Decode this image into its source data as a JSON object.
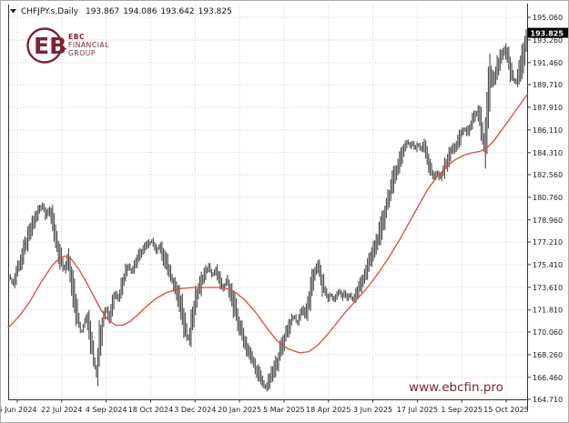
{
  "window": {
    "symbol_title": "CHFJPY.s,Daily",
    "ohlc": {
      "open": "193.867",
      "high": "194.086",
      "low": "193.642",
      "close": "193.825"
    }
  },
  "logo": {
    "monogram": "EB",
    "plus": "+",
    "lines": [
      "EBC",
      "FINANCIAL",
      "GROUP"
    ],
    "color": "#7a2331"
  },
  "watermark": {
    "text": "www.ebcfin.pro",
    "color": "#7a2735"
  },
  "chart_data": {
    "type": "candlestick",
    "symbol": "CHFJPY.s",
    "timeframe": "Daily",
    "title": "CHFJPY.s,Daily  193.867 194.086 193.642 193.825",
    "grid": true,
    "legend_position": "none",
    "ylim": [
      164.71,
      195.06
    ],
    "y_axis": {
      "ticks": [
        "195.060",
        "193.260",
        "191.460",
        "189.710",
        "187.910",
        "186.110",
        "184.310",
        "182.560",
        "180.760",
        "178.960",
        "177.210",
        "175.410",
        "173.610",
        "171.810",
        "170.060",
        "168.260",
        "166.460",
        "164.710"
      ],
      "current_price": "193.825"
    },
    "x_axis": {
      "ticks": [
        "6 Jun 2024",
        "22 Jul 2024",
        "4 Sep 2024",
        "18 Oct 2024",
        "3 Dec 2024",
        "20 Jan 2025",
        "5 Mar 2025",
        "18 Apr 2025",
        "3 Jun 2025",
        "17 Jul 2025",
        "1 Sep 2025",
        "15 Oct 2025"
      ]
    },
    "bar_count": 356,
    "price_path": [
      [
        10,
        174.4
      ],
      [
        13,
        173.8
      ],
      [
        16,
        174.6
      ],
      [
        20,
        175.4
      ],
      [
        24,
        176.3
      ],
      [
        28,
        177.2
      ],
      [
        33,
        178.3
      ],
      [
        38,
        179.2
      ],
      [
        43,
        179.9
      ],
      [
        46,
        180.2
      ],
      [
        49,
        179.2
      ],
      [
        52,
        179.8
      ],
      [
        55,
        179.0
      ],
      [
        58,
        178.2
      ],
      [
        61,
        177.0
      ],
      [
        64,
        176.2
      ],
      [
        67,
        175.4
      ],
      [
        70,
        175.0
      ],
      [
        73,
        175.9
      ],
      [
        76,
        174.6
      ],
      [
        79,
        173.1
      ],
      [
        82,
        172.0
      ],
      [
        85,
        170.9
      ],
      [
        88,
        169.9
      ],
      [
        91,
        170.7
      ],
      [
        94,
        171.2
      ],
      [
        97,
        169.9
      ],
      [
        100,
        168.9
      ],
      [
        103,
        167.2
      ],
      [
        105,
        166.9
      ],
      [
        107,
        168.9
      ],
      [
        110,
        170.3
      ],
      [
        113,
        171.5
      ],
      [
        116,
        171.9
      ],
      [
        119,
        171.1
      ],
      [
        122,
        172.3
      ],
      [
        125,
        173.3
      ],
      [
        128,
        172.6
      ],
      [
        131,
        173.3
      ],
      [
        134,
        174.1
      ],
      [
        137,
        174.9
      ],
      [
        140,
        175.4
      ],
      [
        143,
        174.8
      ],
      [
        146,
        175.3
      ],
      [
        150,
        175.9
      ],
      [
        154,
        176.4
      ],
      [
        158,
        176.8
      ],
      [
        162,
        177.1
      ],
      [
        166,
        177.3
      ],
      [
        170,
        176.5
      ],
      [
        174,
        176.9
      ],
      [
        178,
        176.1
      ],
      [
        182,
        175.4
      ],
      [
        186,
        174.5
      ],
      [
        190,
        173.8
      ],
      [
        194,
        172.9
      ],
      [
        198,
        171.8
      ],
      [
        202,
        170.5
      ],
      [
        205,
        169.4
      ],
      [
        208,
        170.4
      ],
      [
        211,
        171.6
      ],
      [
        214,
        172.7
      ],
      [
        217,
        173.4
      ],
      [
        220,
        174.1
      ],
      [
        224,
        174.8
      ],
      [
        228,
        175.3
      ],
      [
        232,
        174.5
      ],
      [
        236,
        175.0
      ],
      [
        240,
        174.2
      ],
      [
        244,
        173.4
      ],
      [
        248,
        174.3
      ],
      [
        252,
        173.1
      ],
      [
        256,
        172.0
      ],
      [
        260,
        170.9
      ],
      [
        264,
        170.0
      ],
      [
        268,
        169.2
      ],
      [
        272,
        168.4
      ],
      [
        276,
        167.7
      ],
      [
        280,
        167.1
      ],
      [
        284,
        166.5
      ],
      [
        288,
        165.9
      ],
      [
        291,
        165.6
      ],
      [
        294,
        166.2
      ],
      [
        298,
        166.8
      ],
      [
        302,
        167.5
      ],
      [
        306,
        168.4
      ],
      [
        310,
        169.3
      ],
      [
        314,
        170.2
      ],
      [
        318,
        170.9
      ],
      [
        322,
        171.4
      ],
      [
        325,
        170.7
      ],
      [
        328,
        171.3
      ],
      [
        331,
        172.0
      ],
      [
        334,
        171.4
      ],
      [
        337,
        172.2
      ],
      [
        340,
        173.2
      ],
      [
        344,
        174.6
      ],
      [
        347,
        175.5
      ],
      [
        350,
        174.6
      ],
      [
        353,
        173.8
      ],
      [
        356,
        173.2
      ],
      [
        359,
        172.7
      ],
      [
        362,
        173.1
      ],
      [
        365,
        172.6
      ],
      [
        368,
        172.9
      ],
      [
        371,
        173.4
      ],
      [
        374,
        172.8
      ],
      [
        377,
        173.2
      ],
      [
        380,
        172.7
      ],
      [
        383,
        173.1
      ],
      [
        386,
        172.6
      ],
      [
        389,
        173.0
      ],
      [
        392,
        173.4
      ],
      [
        395,
        173.9
      ],
      [
        398,
        174.4
      ],
      [
        401,
        175.0
      ],
      [
        404,
        175.5
      ],
      [
        407,
        176.1
      ],
      [
        410,
        176.8
      ],
      [
        413,
        177.4
      ],
      [
        416,
        178.0
      ],
      [
        419,
        178.8
      ],
      [
        422,
        179.7
      ],
      [
        425,
        180.6
      ],
      [
        428,
        181.4
      ],
      [
        431,
        182.2
      ],
      [
        434,
        182.9
      ],
      [
        437,
        183.6
      ],
      [
        440,
        184.2
      ],
      [
        443,
        184.8
      ],
      [
        446,
        185.2
      ],
      [
        449,
        184.8
      ],
      [
        452,
        185.1
      ],
      [
        455,
        184.6
      ],
      [
        458,
        185.1
      ],
      [
        461,
        184.5
      ],
      [
        464,
        185.0
      ],
      [
        467,
        184.2
      ],
      [
        470,
        183.3
      ],
      [
        473,
        182.7
      ],
      [
        476,
        182.3
      ],
      [
        479,
        182.8
      ],
      [
        482,
        182.2
      ],
      [
        485,
        182.8
      ],
      [
        488,
        183.3
      ],
      [
        491,
        183.9
      ],
      [
        494,
        184.4
      ],
      [
        497,
        184.7
      ],
      [
        500,
        184.9
      ],
      [
        503,
        185.4
      ],
      [
        506,
        185.9
      ],
      [
        509,
        186.2
      ],
      [
        512,
        185.9
      ],
      [
        515,
        186.4
      ],
      [
        518,
        186.9
      ],
      [
        521,
        187.3
      ],
      [
        524,
        187.5
      ],
      [
        527,
        186.8
      ],
      [
        529,
        185.3
      ],
      [
        531,
        184.5
      ],
      [
        533,
        186.3
      ],
      [
        535,
        188.6
      ],
      [
        537,
        190.6
      ],
      [
        539,
        190.3
      ],
      [
        541,
        190.0
      ],
      [
        543,
        190.7
      ],
      [
        545,
        191.1
      ],
      [
        547,
        191.5
      ],
      [
        549,
        191.9
      ],
      [
        551,
        192.2
      ],
      [
        553,
        192.5
      ],
      [
        555,
        192.2
      ],
      [
        557,
        191.6
      ],
      [
        559,
        191.0
      ],
      [
        561,
        190.5
      ],
      [
        563,
        190.1
      ],
      [
        565,
        189.8
      ],
      [
        567,
        190.2
      ],
      [
        569,
        190.8
      ],
      [
        571,
        191.4
      ],
      [
        573,
        192.0
      ],
      [
        575,
        192.8
      ],
      [
        577,
        193.6
      ],
      [
        578,
        193.83
      ]
    ],
    "ma_path": [
      [
        8,
        170.4
      ],
      [
        20,
        171.3
      ],
      [
        32,
        172.5
      ],
      [
        44,
        174.0
      ],
      [
        56,
        175.3
      ],
      [
        64,
        175.9
      ],
      [
        70,
        176.1
      ],
      [
        78,
        175.8
      ],
      [
        86,
        175.0
      ],
      [
        94,
        174.0
      ],
      [
        102,
        172.9
      ],
      [
        110,
        171.8
      ],
      [
        118,
        171.0
      ],
      [
        126,
        170.6
      ],
      [
        134,
        170.6
      ],
      [
        142,
        170.9
      ],
      [
        150,
        171.4
      ],
      [
        160,
        172.1
      ],
      [
        170,
        172.7
      ],
      [
        182,
        173.2
      ],
      [
        196,
        173.5
      ],
      [
        212,
        173.6
      ],
      [
        228,
        173.6
      ],
      [
        244,
        173.6
      ],
      [
        256,
        173.3
      ],
      [
        268,
        172.6
      ],
      [
        280,
        171.6
      ],
      [
        292,
        170.4
      ],
      [
        304,
        169.3
      ],
      [
        316,
        168.7
      ],
      [
        328,
        168.4
      ],
      [
        338,
        168.5
      ],
      [
        348,
        169.0
      ],
      [
        358,
        169.8
      ],
      [
        368,
        170.7
      ],
      [
        378,
        171.6
      ],
      [
        388,
        172.4
      ],
      [
        398,
        173.2
      ],
      [
        408,
        174.1
      ],
      [
        418,
        175.1
      ],
      [
        428,
        176.2
      ],
      [
        438,
        177.4
      ],
      [
        448,
        178.7
      ],
      [
        458,
        180.0
      ],
      [
        468,
        181.3
      ],
      [
        478,
        182.3
      ],
      [
        488,
        183.1
      ],
      [
        498,
        183.7
      ],
      [
        508,
        184.1
      ],
      [
        518,
        184.3
      ],
      [
        526,
        184.4
      ],
      [
        534,
        184.7
      ],
      [
        542,
        185.3
      ],
      [
        550,
        186.1
      ],
      [
        558,
        186.9
      ],
      [
        566,
        187.7
      ],
      [
        572,
        188.3
      ],
      [
        578,
        188.9
      ]
    ],
    "colors": {
      "bar": "#4f4f4f",
      "ma": "#d84a3f",
      "grid": "#d5cfc9",
      "axis_line": "#333333",
      "tag_bg": "#000000",
      "tag_fg": "#ffffff"
    }
  }
}
